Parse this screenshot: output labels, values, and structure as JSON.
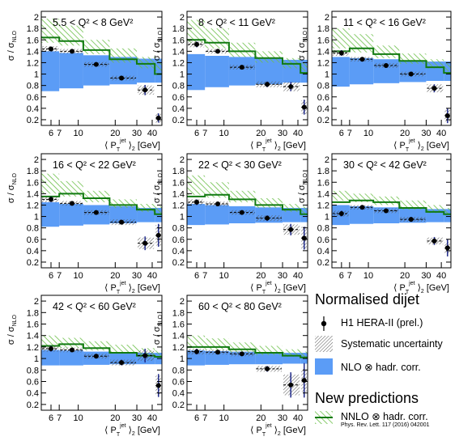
{
  "colors": {
    "nlo_band": "#5b9cf6",
    "nnlo_line": "#117a11",
    "nnlo_hatch": "#6cbf4a",
    "syst_hatch": "#444444",
    "data_point": "#000000",
    "stat_error": "#1f2a8a"
  },
  "y_tick_labels": [
    "0.2",
    "0.4",
    "0.6",
    "0.8",
    "1",
    "1.2",
    "1.4",
    "1.6",
    "1.8",
    "2"
  ],
  "x_tick_labels": [
    "6",
    "7",
    "10",
    "20",
    "30",
    "40"
  ],
  "legend": {
    "title": "Normalised dijet",
    "data_label": "H1 HERA-II (prel.)",
    "syst_label": "Systematic uncertainty",
    "nlo_label": "NLO ⊗ hadr. corr.",
    "new_title": "New predictions",
    "nnlo_label": "NNLO ⊗ hadr. corr.",
    "nnlo_ref": "Phys. Rev. Lett. 117 (2016) 042001"
  },
  "chart_data": [
    {
      "type": "scatter",
      "bin_label": "5.5 < Q² < 8 GeV²",
      "xlabel": "⟨ P_T^jet ⟩₂ [GeV]",
      "ylabel": "σ / σ_NLO",
      "xscale": "log",
      "xlim": [
        5,
        48
      ],
      "ylim": [
        0.1,
        2.1
      ],
      "bins": [
        [
          5,
          7
        ],
        [
          7,
          11
        ],
        [
          11,
          18
        ],
        [
          18,
          30
        ],
        [
          30,
          42
        ],
        [
          42,
          48
        ]
      ],
      "points": [
        {
          "x": 6.0,
          "y": 1.44,
          "stat": 0.04,
          "syst": 0.05
        },
        {
          "x": 8.9,
          "y": 1.4,
          "stat": 0.03,
          "syst": 0.04
        },
        {
          "x": 14.0,
          "y": 1.17,
          "stat": 0.03,
          "syst": 0.04
        },
        {
          "x": 22.5,
          "y": 0.93,
          "stat": 0.04,
          "syst": 0.04
        },
        {
          "x": 35.0,
          "y": 0.72,
          "stat": 0.09,
          "syst": 0.08
        },
        {
          "x": 45.0,
          "y": 0.23,
          "stat": 0.08,
          "syst": 0.08
        }
      ],
      "nlo_band": [
        [
          0.7,
          1.4
        ],
        [
          0.75,
          1.37
        ],
        [
          0.8,
          1.33
        ],
        [
          0.82,
          1.3
        ],
        [
          0.85,
          1.27
        ],
        [
          0.85,
          1.27
        ]
      ],
      "nnlo_band": [
        [
          1.55,
          1.97
        ],
        [
          1.5,
          1.85
        ],
        [
          1.35,
          1.6
        ],
        [
          1.2,
          1.45
        ],
        [
          1.1,
          1.3
        ],
        [
          1.05,
          1.25
        ]
      ],
      "nnlo_central": [
        1.64,
        1.58,
        1.42,
        1.26,
        1.18,
        1.0
      ]
    },
    {
      "type": "scatter",
      "bin_label": "8 < Q² < 11 GeV²",
      "xlabel": "⟨ P_T^jet ⟩₂ [GeV]",
      "ylabel": "σ / σ_NLO",
      "xscale": "log",
      "xlim": [
        5,
        48
      ],
      "ylim": [
        0.1,
        2.1
      ],
      "bins": [
        [
          5,
          7
        ],
        [
          7,
          11
        ],
        [
          11,
          18
        ],
        [
          18,
          30
        ],
        [
          30,
          42
        ],
        [
          42,
          48
        ]
      ],
      "points": [
        {
          "x": 6.0,
          "y": 1.52,
          "stat": 0.05,
          "syst": 0.05
        },
        {
          "x": 8.9,
          "y": 1.4,
          "stat": 0.03,
          "syst": 0.04
        },
        {
          "x": 14.0,
          "y": 1.12,
          "stat": 0.03,
          "syst": 0.04
        },
        {
          "x": 22.5,
          "y": 0.82,
          "stat": 0.05,
          "syst": 0.05
        },
        {
          "x": 35.0,
          "y": 0.78,
          "stat": 0.08,
          "syst": 0.08
        },
        {
          "x": 45.0,
          "y": 0.42,
          "stat": 0.13,
          "syst": 0.12
        }
      ],
      "nlo_band": [
        [
          0.72,
          1.35
        ],
        [
          0.77,
          1.32
        ],
        [
          0.8,
          1.3
        ],
        [
          0.82,
          1.28
        ],
        [
          0.85,
          1.25
        ],
        [
          0.85,
          1.25
        ]
      ],
      "nnlo_band": [
        [
          1.55,
          1.95
        ],
        [
          1.45,
          1.8
        ],
        [
          1.3,
          1.55
        ],
        [
          1.2,
          1.4
        ],
        [
          1.1,
          1.28
        ],
        [
          1.05,
          1.2
        ]
      ],
      "nnlo_central": [
        1.6,
        1.55,
        1.4,
        1.28,
        1.18,
        1.02
      ]
    },
    {
      "type": "scatter",
      "bin_label": "11 < Q² < 16 GeV²",
      "xlabel": "⟨ P_T^jet ⟩₂ [GeV]",
      "ylabel": "σ / σ_NLO",
      "xscale": "log",
      "xlim": [
        5,
        48
      ],
      "ylim": [
        0.1,
        2.1
      ],
      "bins": [
        [
          5,
          7
        ],
        [
          7,
          11
        ],
        [
          11,
          18
        ],
        [
          18,
          30
        ],
        [
          30,
          42
        ],
        [
          42,
          48
        ]
      ],
      "points": [
        {
          "x": 6.0,
          "y": 1.37,
          "stat": 0.05,
          "syst": 0.05
        },
        {
          "x": 8.9,
          "y": 1.26,
          "stat": 0.03,
          "syst": 0.04
        },
        {
          "x": 14.0,
          "y": 1.15,
          "stat": 0.03,
          "syst": 0.04
        },
        {
          "x": 22.5,
          "y": 1.0,
          "stat": 0.04,
          "syst": 0.04
        },
        {
          "x": 35.0,
          "y": 0.75,
          "stat": 0.07,
          "syst": 0.07
        },
        {
          "x": 45.0,
          "y": 0.27,
          "stat": 0.13,
          "syst": 0.1
        }
      ],
      "nlo_band": [
        [
          0.78,
          1.3
        ],
        [
          0.82,
          1.28
        ],
        [
          0.84,
          1.26
        ],
        [
          0.86,
          1.24
        ],
        [
          0.88,
          1.22
        ],
        [
          0.88,
          1.22
        ]
      ],
      "nnlo_band": [
        [
          1.45,
          1.8
        ],
        [
          1.38,
          1.7
        ],
        [
          1.28,
          1.5
        ],
        [
          1.18,
          1.36
        ],
        [
          1.1,
          1.26
        ],
        [
          1.05,
          1.2
        ]
      ],
      "nnlo_central": [
        1.4,
        1.45,
        1.35,
        1.23,
        1.12,
        1.02
      ]
    },
    {
      "type": "scatter",
      "bin_label": "16 < Q² < 22 GeV²",
      "xlabel": "⟨ P_T^jet ⟩₂ [GeV]",
      "ylabel": "σ / σ_NLO",
      "xscale": "log",
      "xlim": [
        5,
        48
      ],
      "ylim": [
        0.1,
        2.1
      ],
      "bins": [
        [
          5,
          7
        ],
        [
          7,
          11
        ],
        [
          11,
          18
        ],
        [
          18,
          30
        ],
        [
          30,
          42
        ],
        [
          42,
          48
        ]
      ],
      "points": [
        {
          "x": 6.0,
          "y": 1.3,
          "stat": 0.05,
          "syst": 0.05
        },
        {
          "x": 8.9,
          "y": 1.23,
          "stat": 0.03,
          "syst": 0.04
        },
        {
          "x": 14.0,
          "y": 1.07,
          "stat": 0.03,
          "syst": 0.04
        },
        {
          "x": 22.5,
          "y": 0.9,
          "stat": 0.04,
          "syst": 0.05
        },
        {
          "x": 35.0,
          "y": 0.53,
          "stat": 0.12,
          "syst": 0.1
        },
        {
          "x": 45.0,
          "y": 0.67,
          "stat": 0.2,
          "syst": 0.18
        }
      ],
      "nlo_band": [
        [
          0.82,
          1.25
        ],
        [
          0.84,
          1.22
        ],
        [
          0.86,
          1.2
        ],
        [
          0.88,
          1.18
        ],
        [
          0.9,
          1.15
        ],
        [
          0.9,
          1.15
        ]
      ],
      "nnlo_band": [
        [
          1.4,
          1.75
        ],
        [
          1.35,
          1.62
        ],
        [
          1.25,
          1.45
        ],
        [
          1.15,
          1.3
        ],
        [
          1.08,
          1.22
        ],
        [
          1.05,
          1.18
        ]
      ],
      "nnlo_central": [
        1.35,
        1.4,
        1.32,
        1.2,
        1.12,
        1.04
      ]
    },
    {
      "type": "scatter",
      "bin_label": "22 < Q² < 30 GeV²",
      "xlabel": "⟨ P_T^jet ⟩₂ [GeV]",
      "ylabel": "σ / σ_NLO",
      "xscale": "log",
      "xlim": [
        5,
        48
      ],
      "ylim": [
        0.1,
        2.1
      ],
      "bins": [
        [
          5,
          7
        ],
        [
          7,
          11
        ],
        [
          11,
          18
        ],
        [
          18,
          30
        ],
        [
          30,
          42
        ],
        [
          42,
          48
        ]
      ],
      "points": [
        {
          "x": 6.0,
          "y": 1.25,
          "stat": 0.05,
          "syst": 0.05
        },
        {
          "x": 8.9,
          "y": 1.22,
          "stat": 0.03,
          "syst": 0.04
        },
        {
          "x": 14.0,
          "y": 1.07,
          "stat": 0.03,
          "syst": 0.04
        },
        {
          "x": 22.5,
          "y": 0.97,
          "stat": 0.05,
          "syst": 0.05
        },
        {
          "x": 35.0,
          "y": 0.77,
          "stat": 0.1,
          "syst": 0.09
        },
        {
          "x": 45.0,
          "y": 0.62,
          "stat": 0.2,
          "syst": 0.2
        }
      ],
      "nlo_band": [
        [
          0.85,
          1.22
        ],
        [
          0.86,
          1.2
        ],
        [
          0.88,
          1.18
        ],
        [
          0.89,
          1.16
        ],
        [
          0.9,
          1.15
        ],
        [
          0.9,
          1.15
        ]
      ],
      "nnlo_band": [
        [
          1.38,
          1.72
        ],
        [
          1.33,
          1.6
        ],
        [
          1.25,
          1.45
        ],
        [
          1.15,
          1.32
        ],
        [
          1.08,
          1.22
        ],
        [
          1.05,
          1.18
        ]
      ],
      "nnlo_central": [
        1.35,
        1.38,
        1.3,
        1.2,
        1.12,
        1.04
      ]
    },
    {
      "type": "scatter",
      "bin_label": "30 < Q² < 42 GeV²",
      "xlabel": "⟨ P_T^jet ⟩₂ [GeV]",
      "ylabel": "σ / σ_NLO",
      "xscale": "log",
      "xlim": [
        5,
        48
      ],
      "ylim": [
        0.1,
        2.1
      ],
      "bins": [
        [
          5,
          7
        ],
        [
          7,
          11
        ],
        [
          11,
          18
        ],
        [
          18,
          30
        ],
        [
          30,
          42
        ],
        [
          42,
          48
        ]
      ],
      "points": [
        {
          "x": 6.0,
          "y": 1.05,
          "stat": 0.05,
          "syst": 0.05
        },
        {
          "x": 8.9,
          "y": 1.16,
          "stat": 0.03,
          "syst": 0.04
        },
        {
          "x": 14.0,
          "y": 1.1,
          "stat": 0.03,
          "syst": 0.04
        },
        {
          "x": 22.5,
          "y": 0.95,
          "stat": 0.04,
          "syst": 0.04
        },
        {
          "x": 35.0,
          "y": 0.57,
          "stat": 0.07,
          "syst": 0.06
        },
        {
          "x": 45.0,
          "y": 0.45,
          "stat": 0.15,
          "syst": 0.1
        }
      ],
      "nlo_band": [
        [
          0.85,
          1.2
        ],
        [
          0.87,
          1.18
        ],
        [
          0.88,
          1.16
        ],
        [
          0.89,
          1.14
        ],
        [
          0.9,
          1.13
        ],
        [
          0.9,
          1.13
        ]
      ],
      "nnlo_band": [
        [
          1.28,
          1.45
        ],
        [
          1.25,
          1.4
        ],
        [
          1.2,
          1.35
        ],
        [
          1.12,
          1.28
        ],
        [
          1.06,
          1.2
        ],
        [
          1.04,
          1.15
        ]
      ],
      "nnlo_central": [
        1.25,
        1.28,
        1.25,
        1.15,
        1.08,
        1.04
      ]
    },
    {
      "type": "scatter",
      "bin_label": "42 < Q² < 60 GeV²",
      "xlabel": "⟨ P_T^jet ⟩₂ [GeV]",
      "ylabel": "σ / σ_NLO",
      "xscale": "log",
      "xlim": [
        5,
        48
      ],
      "ylim": [
        0.1,
        2.1
      ],
      "bins": [
        [
          5,
          7
        ],
        [
          7,
          11
        ],
        [
          11,
          18
        ],
        [
          18,
          30
        ],
        [
          30,
          42
        ],
        [
          42,
          48
        ]
      ],
      "points": [
        {
          "x": 6.0,
          "y": 1.17,
          "stat": 0.05,
          "syst": 0.05
        },
        {
          "x": 8.9,
          "y": 1.15,
          "stat": 0.03,
          "syst": 0.04
        },
        {
          "x": 14.0,
          "y": 1.04,
          "stat": 0.03,
          "syst": 0.04
        },
        {
          "x": 22.5,
          "y": 0.93,
          "stat": 0.05,
          "syst": 0.05
        },
        {
          "x": 35.0,
          "y": 1.05,
          "stat": 0.12,
          "syst": 0.09
        },
        {
          "x": 45.0,
          "y": 0.53,
          "stat": 0.2,
          "syst": 0.17
        }
      ],
      "nlo_band": [
        [
          0.88,
          1.15
        ],
        [
          0.88,
          1.14
        ],
        [
          0.89,
          1.12
        ],
        [
          0.9,
          1.11
        ],
        [
          0.9,
          1.1
        ],
        [
          0.9,
          1.1
        ]
      ],
      "nnlo_band": [
        [
          1.2,
          1.4
        ],
        [
          1.18,
          1.36
        ],
        [
          1.14,
          1.3
        ],
        [
          1.1,
          1.24
        ],
        [
          1.05,
          1.18
        ],
        [
          1.03,
          1.14
        ]
      ],
      "nnlo_central": [
        1.22,
        1.25,
        1.18,
        1.1,
        1.05,
        1.03
      ]
    },
    {
      "type": "scatter",
      "bin_label": "60 < Q² < 80 GeV²",
      "xlabel": "⟨ P_T^jet ⟩₂ [GeV]",
      "ylabel": "σ / σ_NLO",
      "xscale": "log",
      "xlim": [
        5,
        48
      ],
      "ylim": [
        0.1,
        2.1
      ],
      "bins": [
        [
          5,
          7
        ],
        [
          7,
          11
        ],
        [
          11,
          18
        ],
        [
          18,
          30
        ],
        [
          30,
          42
        ],
        [
          42,
          48
        ]
      ],
      "points": [
        {
          "x": 6.0,
          "y": 1.12,
          "stat": 0.05,
          "syst": 0.05
        },
        {
          "x": 8.9,
          "y": 1.11,
          "stat": 0.03,
          "syst": 0.04
        },
        {
          "x": 14.0,
          "y": 1.08,
          "stat": 0.03,
          "syst": 0.04
        },
        {
          "x": 22.5,
          "y": 0.82,
          "stat": 0.05,
          "syst": 0.05
        },
        {
          "x": 35.0,
          "y": 0.54,
          "stat": 0.22,
          "syst": 0.18
        },
        {
          "x": 45.0,
          "y": 0.62,
          "stat": 0.3,
          "syst": 0.2
        }
      ],
      "nlo_band": [
        [
          0.88,
          1.14
        ],
        [
          0.89,
          1.13
        ],
        [
          0.9,
          1.12
        ],
        [
          0.9,
          1.1
        ],
        [
          0.91,
          1.1
        ],
        [
          0.91,
          1.1
        ]
      ],
      "nnlo_band": [
        [
          1.18,
          1.4
        ],
        [
          1.15,
          1.35
        ],
        [
          1.1,
          1.28
        ],
        [
          1.06,
          1.22
        ],
        [
          1.03,
          1.16
        ],
        [
          1.02,
          1.12
        ]
      ],
      "nnlo_central": [
        1.2,
        1.2,
        1.16,
        1.1,
        1.05,
        1.02
      ]
    }
  ]
}
